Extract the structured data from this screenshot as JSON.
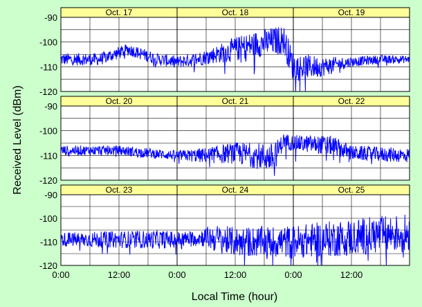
{
  "colors": {
    "background": "#ccffcc",
    "plot_area": "#ffffff",
    "header_band": "#ffff99",
    "trace": "#0000ff",
    "grid": "#000000"
  },
  "chart_data": {
    "type": "line",
    "title": "",
    "ylabel": "Received Level (dBm)",
    "xlabel": "Local Time (hour)",
    "ylim": [
      -120,
      -90
    ],
    "y_ticks": [
      "-90",
      "-100",
      "-110",
      "-120"
    ],
    "x_tick_labels": [
      "0:00",
      "12:00",
      "0:00",
      "12:00",
      "0:00",
      "12:00"
    ],
    "x_tick_hours": [
      0,
      12,
      24,
      36,
      48,
      60
    ],
    "x_range_hours": [
      0,
      72
    ],
    "grid": true,
    "panels": [
      {
        "days": [
          "Oct. 17",
          "Oct. 18",
          "Oct. 19"
        ],
        "trend": [
          [
            0,
            -107
          ],
          [
            8,
            -107
          ],
          [
            14,
            -103
          ],
          [
            20,
            -107
          ],
          [
            24,
            -108
          ],
          [
            28,
            -107
          ],
          [
            34,
            -104
          ],
          [
            40,
            -101
          ],
          [
            46,
            -99
          ],
          [
            48,
            -110
          ],
          [
            54,
            -110
          ],
          [
            60,
            -108
          ],
          [
            66,
            -107
          ],
          [
            72,
            -107
          ]
        ],
        "noise": [
          [
            0,
            2.5
          ],
          [
            24,
            2.5
          ],
          [
            30,
            3
          ],
          [
            36,
            5
          ],
          [
            46,
            6
          ],
          [
            48,
            6
          ],
          [
            54,
            4
          ],
          [
            60,
            2
          ],
          [
            72,
            1.5
          ]
        ]
      },
      {
        "days": [
          "Oct. 20",
          "Oct. 21",
          "Oct. 22"
        ],
        "trend": [
          [
            0,
            -108
          ],
          [
            12,
            -108
          ],
          [
            24,
            -110
          ],
          [
            30,
            -110
          ],
          [
            36,
            -109
          ],
          [
            44,
            -111
          ],
          [
            46,
            -104
          ],
          [
            48,
            -105
          ],
          [
            56,
            -106
          ],
          [
            60,
            -109
          ],
          [
            72,
            -110
          ]
        ],
        "noise": [
          [
            0,
            2
          ],
          [
            24,
            2
          ],
          [
            34,
            4
          ],
          [
            44,
            6
          ],
          [
            46,
            3
          ],
          [
            56,
            4
          ],
          [
            60,
            3
          ],
          [
            72,
            3
          ]
        ]
      },
      {
        "days": [
          "Oct. 23",
          "Oct. 24",
          "Oct. 25"
        ],
        "trend": [
          [
            0,
            -109
          ],
          [
            24,
            -109
          ],
          [
            30,
            -108
          ],
          [
            36,
            -110
          ],
          [
            48,
            -110
          ],
          [
            60,
            -108
          ],
          [
            72,
            -106
          ]
        ],
        "noise": [
          [
            0,
            3
          ],
          [
            20,
            4
          ],
          [
            28,
            3
          ],
          [
            32,
            6
          ],
          [
            48,
            7
          ],
          [
            60,
            8
          ],
          [
            72,
            8
          ]
        ]
      }
    ]
  }
}
